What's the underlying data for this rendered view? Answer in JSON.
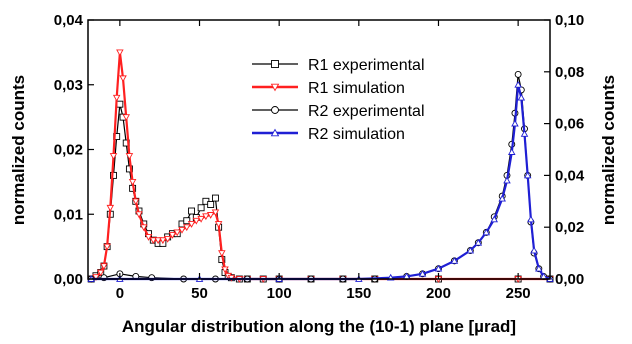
{
  "chart_data": {
    "type": "line",
    "xlabel": "Angular distribution along the (10-1) plane [µrad]",
    "ylabel_left": "normalized counts",
    "ylabel_right": "normalized counts",
    "xlim": [
      -20,
      270
    ],
    "ylim_left": [
      0,
      0.04
    ],
    "ylim_right": [
      0,
      0.1
    ],
    "x_ticks": [
      0,
      50,
      100,
      150,
      200,
      250
    ],
    "y_left_ticks": [
      "0,00",
      "0,01",
      "0,02",
      "0,03",
      "0,04"
    ],
    "y_right_ticks": [
      "0,00",
      "0,02",
      "0,04",
      "0,06",
      "0,08",
      "0,10"
    ],
    "grid": false,
    "legend_position": "top-center",
    "series": [
      {
        "name": "R1 experimental",
        "axis": "left",
        "color": "#000000",
        "marker": "square",
        "x": [
          -18,
          -15,
          -12,
          -10,
          -8,
          -6,
          -4,
          -2,
          0,
          2,
          4,
          6,
          8,
          10,
          12,
          15,
          18,
          21,
          24,
          27,
          30,
          33,
          36,
          39,
          42,
          45,
          48,
          51,
          54,
          57,
          60,
          62,
          64,
          66,
          68,
          70,
          75,
          80,
          90,
          100,
          120,
          140,
          160,
          200,
          250,
          270
        ],
        "values": [
          0,
          0.0005,
          0.001,
          0.002,
          0.005,
          0.01,
          0.016,
          0.022,
          0.027,
          0.025,
          0.021,
          0.017,
          0.014,
          0.012,
          0.0105,
          0.0085,
          0.007,
          0.006,
          0.0055,
          0.0055,
          0.0065,
          0.007,
          0.007,
          0.0085,
          0.009,
          0.0105,
          0.0095,
          0.011,
          0.012,
          0.0115,
          0.0125,
          0.008,
          0.003,
          0.001,
          0.0004,
          0.0002,
          0,
          0,
          0,
          0,
          0,
          0,
          0,
          0,
          0,
          0
        ]
      },
      {
        "name": "R1 simulation",
        "axis": "left",
        "color": "#ff2020",
        "marker": "triangle-down",
        "x": [
          -18,
          -15,
          -12,
          -10,
          -8,
          -6,
          -4,
          -2,
          0,
          2,
          4,
          6,
          8,
          10,
          12,
          15,
          18,
          21,
          24,
          27,
          30,
          33,
          36,
          39,
          42,
          45,
          48,
          51,
          54,
          57,
          60,
          62,
          64,
          66,
          68,
          70,
          75,
          80,
          90,
          100,
          120,
          140,
          160,
          200,
          250,
          270
        ],
        "values": [
          0,
          0.0003,
          0.001,
          0.002,
          0.005,
          0.011,
          0.019,
          0.028,
          0.035,
          0.031,
          0.025,
          0.019,
          0.015,
          0.012,
          0.01,
          0.008,
          0.0065,
          0.006,
          0.006,
          0.006,
          0.0062,
          0.0068,
          0.0072,
          0.0076,
          0.008,
          0.0085,
          0.009,
          0.0093,
          0.0097,
          0.0099,
          0.0103,
          0.0085,
          0.004,
          0.0015,
          0.0005,
          0.0002,
          0,
          0,
          0,
          0,
          0,
          0,
          0,
          0,
          0,
          0
        ]
      },
      {
        "name": "R2 experimental",
        "axis": "right",
        "color": "#000000",
        "marker": "circle",
        "x": [
          -18,
          -10,
          0,
          10,
          20,
          40,
          60,
          80,
          100,
          120,
          140,
          160,
          180,
          190,
          200,
          210,
          220,
          225,
          230,
          235,
          240,
          243,
          246,
          248,
          250,
          252,
          254,
          256,
          258,
          260,
          263,
          266,
          270
        ],
        "values": [
          0,
          0.0005,
          0.002,
          0.001,
          0.0005,
          0,
          0,
          0,
          0,
          0,
          0,
          0,
          0.001,
          0.002,
          0.004,
          0.007,
          0.011,
          0.014,
          0.018,
          0.024,
          0.032,
          0.04,
          0.052,
          0.064,
          0.079,
          0.073,
          0.058,
          0.04,
          0.022,
          0.01,
          0.004,
          0.001,
          0
        ]
      },
      {
        "name": "R2 simulation",
        "axis": "right",
        "color": "#1f1fd4",
        "marker": "triangle-up",
        "x": [
          -18,
          0,
          50,
          100,
          150,
          170,
          180,
          190,
          200,
          210,
          220,
          225,
          230,
          235,
          240,
          243,
          246,
          248,
          250,
          252,
          254,
          256,
          258,
          260,
          263,
          266,
          270
        ],
        "values": [
          0,
          0,
          0,
          0,
          0,
          0.0005,
          0.001,
          0.002,
          0.004,
          0.007,
          0.011,
          0.014,
          0.018,
          0.023,
          0.031,
          0.038,
          0.049,
          0.06,
          0.075,
          0.07,
          0.056,
          0.04,
          0.023,
          0.011,
          0.004,
          0.001,
          0
        ]
      }
    ]
  }
}
